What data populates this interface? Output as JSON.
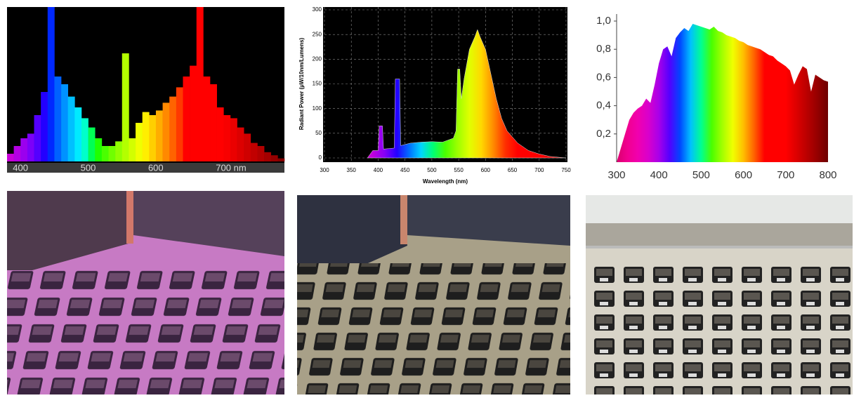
{
  "chart_data": [
    {
      "type": "histogram",
      "bins": [
        380,
        390,
        400,
        410,
        420,
        430,
        440,
        450,
        460,
        470,
        480,
        490,
        500,
        510,
        520,
        530,
        540,
        550,
        560,
        570,
        580,
        590,
        600,
        610,
        620,
        630,
        640,
        650,
        660,
        670,
        680,
        690,
        700,
        710,
        720,
        730,
        740,
        750,
        760,
        770,
        780,
        790
      ],
      "values": [
        5,
        10,
        15,
        18,
        30,
        45,
        100,
        55,
        50,
        42,
        35,
        28,
        22,
        15,
        10,
        10,
        13,
        70,
        15,
        25,
        32,
        30,
        33,
        38,
        42,
        48,
        55,
        62,
        100,
        55,
        50,
        35,
        30,
        28,
        22,
        18,
        12,
        10,
        6,
        4,
        2
      ],
      "xlim": [
        380,
        790
      ],
      "ylim": [
        0,
        100
      ],
      "xticks": [
        400,
        500,
        600,
        {
          "value": 700,
          "label": "700 nm"
        }
      ]
    },
    {
      "type": "area",
      "y_label": "Radiant Power (µW/10nm/Lumens)",
      "x_label": "Wavelength (nm)",
      "x": [
        380,
        390,
        400,
        402,
        408,
        410,
        430,
        432,
        440,
        442,
        460,
        480,
        500,
        520,
        540,
        545,
        548,
        552,
        555,
        560,
        570,
        580,
        585,
        590,
        600,
        610,
        620,
        630,
        640,
        660,
        680,
        700,
        720,
        750
      ],
      "values": [
        0,
        15,
        15,
        65,
        65,
        18,
        20,
        160,
        160,
        25,
        30,
        32,
        33,
        32,
        40,
        55,
        180,
        180,
        120,
        160,
        220,
        245,
        260,
        245,
        220,
        170,
        120,
        80,
        55,
        30,
        15,
        8,
        3,
        0
      ],
      "xlim": [
        300,
        750
      ],
      "ylim": [
        0,
        300
      ],
      "xticks": [
        300,
        350,
        400,
        450,
        500,
        550,
        600,
        650,
        700,
        750
      ],
      "yticks": [
        0,
        50,
        100,
        150,
        200,
        250,
        300
      ],
      "grid": true
    },
    {
      "type": "area",
      "x": [
        300,
        310,
        320,
        330,
        340,
        350,
        360,
        370,
        380,
        390,
        400,
        410,
        420,
        430,
        440,
        450,
        460,
        470,
        480,
        490,
        500,
        510,
        520,
        530,
        540,
        550,
        560,
        570,
        580,
        590,
        600,
        610,
        620,
        630,
        640,
        650,
        660,
        670,
        680,
        690,
        700,
        710,
        720,
        730,
        740,
        750,
        760,
        770,
        780,
        790,
        800
      ],
      "values": [
        0,
        0.1,
        0.2,
        0.3,
        0.35,
        0.38,
        0.4,
        0.45,
        0.42,
        0.55,
        0.7,
        0.8,
        0.82,
        0.75,
        0.88,
        0.92,
        0.95,
        0.93,
        0.98,
        0.97,
        0.96,
        0.95,
        0.94,
        0.96,
        0.93,
        0.92,
        0.9,
        0.89,
        0.88,
        0.86,
        0.85,
        0.83,
        0.82,
        0.81,
        0.8,
        0.78,
        0.76,
        0.75,
        0.72,
        0.7,
        0.68,
        0.65,
        0.55,
        0.62,
        0.68,
        0.66,
        0.5,
        0.62,
        0.6,
        0.58,
        0.57
      ],
      "xlim": [
        300,
        800
      ],
      "ylim": [
        0,
        1
      ],
      "xticks": [
        300,
        400,
        500,
        600,
        700,
        800
      ],
      "yticks": [
        {
          "value": 0.2,
          "label": "0,2"
        },
        {
          "value": 0.4,
          "label": "0,4"
        },
        {
          "value": 0.6,
          "label": "0,6"
        },
        {
          "value": 0.8,
          "label": "0,8"
        },
        {
          "value": 1,
          "label": "1,0"
        }
      ]
    }
  ]
}
